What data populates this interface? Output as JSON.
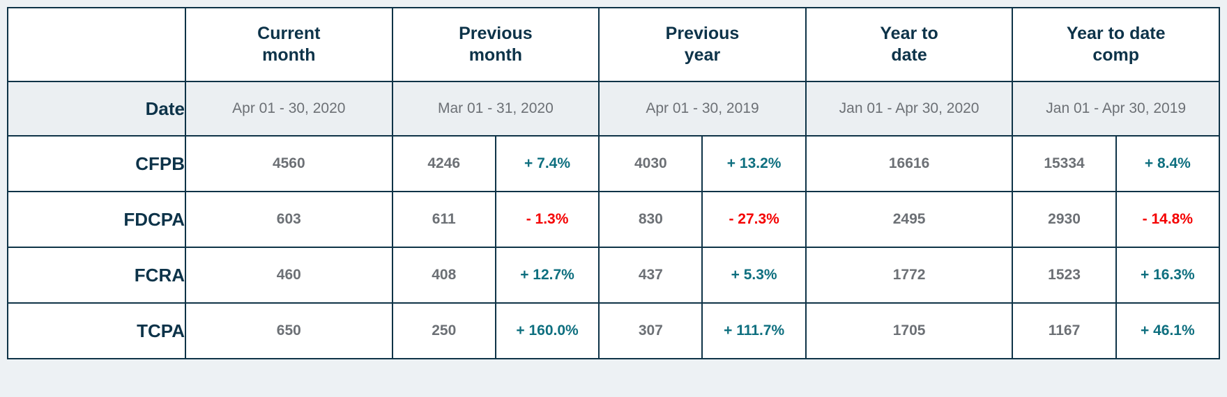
{
  "colors": {
    "positive": "#0e6f7f",
    "negative": "#f40000",
    "header_text": "#0d3349",
    "muted_text": "#6c7075",
    "border": "#0e3347",
    "page_background": "#edf1f4",
    "date_row_background": "#ebeff2"
  },
  "chart_data": {
    "type": "table",
    "date_row_label": "Date",
    "columns": [
      {
        "label": "Current\nmonth",
        "date": "Apr 01 - 30, 2020"
      },
      {
        "label": "Previous\nmonth",
        "date": "Mar 01 - 31, 2020"
      },
      {
        "label": "Previous\nyear",
        "date": "Apr 01 - 30, 2019"
      },
      {
        "label": "Year to\ndate",
        "date": "Jan 01 - Apr 30, 2020"
      },
      {
        "label": "Year to date\ncomp",
        "date": "Jan 01 - Apr 30, 2019"
      }
    ],
    "rows": [
      {
        "label": "CFPB",
        "current_month": "4560",
        "previous_month": {
          "value": "4246",
          "change": "+ 7.4%"
        },
        "previous_year": {
          "value": "4030",
          "change": "+ 13.2%"
        },
        "year_to_date": "16616",
        "year_to_date_comp": {
          "value": "15334",
          "change": "+ 8.4%"
        }
      },
      {
        "label": "FDCPA",
        "current_month": "603",
        "previous_month": {
          "value": "611",
          "change": "- 1.3%"
        },
        "previous_year": {
          "value": "830",
          "change": "- 27.3%"
        },
        "year_to_date": "2495",
        "year_to_date_comp": {
          "value": "2930",
          "change": "- 14.8%"
        }
      },
      {
        "label": "FCRA",
        "current_month": "460",
        "previous_month": {
          "value": "408",
          "change": "+ 12.7%"
        },
        "previous_year": {
          "value": "437",
          "change": "+ 5.3%"
        },
        "year_to_date": "1772",
        "year_to_date_comp": {
          "value": "1523",
          "change": "+ 16.3%"
        }
      },
      {
        "label": "TCPA",
        "current_month": "650",
        "previous_month": {
          "value": "250",
          "change": "+ 160.0%"
        },
        "previous_year": {
          "value": "307",
          "change": "+ 111.7%"
        },
        "year_to_date": "1705",
        "year_to_date_comp": {
          "value": "1167",
          "change": "+ 46.1%"
        }
      }
    ]
  }
}
